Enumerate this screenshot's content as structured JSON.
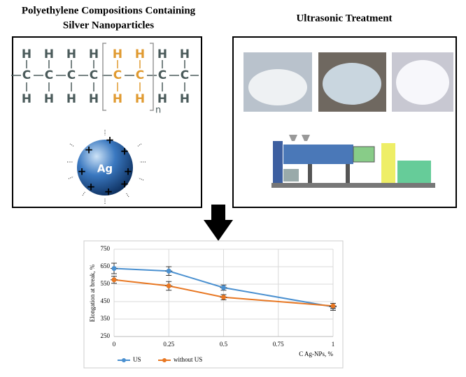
{
  "left_panel": {
    "title_lines": [
      "Polyethylene Compositions Containing",
      "Silver Nanoparticles"
    ],
    "structure": {
      "top": [
        "H",
        "H",
        "H",
        "H",
        "H",
        "H",
        "H",
        "H"
      ],
      "middle": [
        "C",
        "C",
        "C",
        "C",
        "C",
        "C",
        "C",
        "C"
      ],
      "bottom": [
        "H",
        "H",
        "H",
        "H",
        "H",
        "H",
        "H",
        "H"
      ],
      "repeat": "n"
    },
    "particle": "Ag"
  },
  "right_panel": {
    "title": "Ultrasonic Treatment"
  },
  "chart_data": {
    "type": "line",
    "x_label": "C Ag-NPs, %",
    "y_label": "Elongation at break, %",
    "x": [
      0,
      0.25,
      0.5,
      1
    ],
    "series": [
      {
        "name": "US",
        "color": "#4a90d0",
        "values": [
          640,
          625,
          530,
          420
        ],
        "errors": [
          30,
          25,
          15,
          20
        ]
      },
      {
        "name": "without US",
        "color": "#e87722",
        "values": [
          575,
          540,
          475,
          425
        ],
        "errors": [
          20,
          25,
          15,
          15
        ]
      }
    ],
    "xlim": [
      0,
      1
    ],
    "xticks": [
      0,
      0.25,
      0.5,
      0.75,
      1
    ],
    "ylim": [
      250,
      750
    ],
    "yticks": [
      250,
      350,
      450,
      550,
      650,
      750
    ],
    "grid": true,
    "legend": "bottom"
  }
}
